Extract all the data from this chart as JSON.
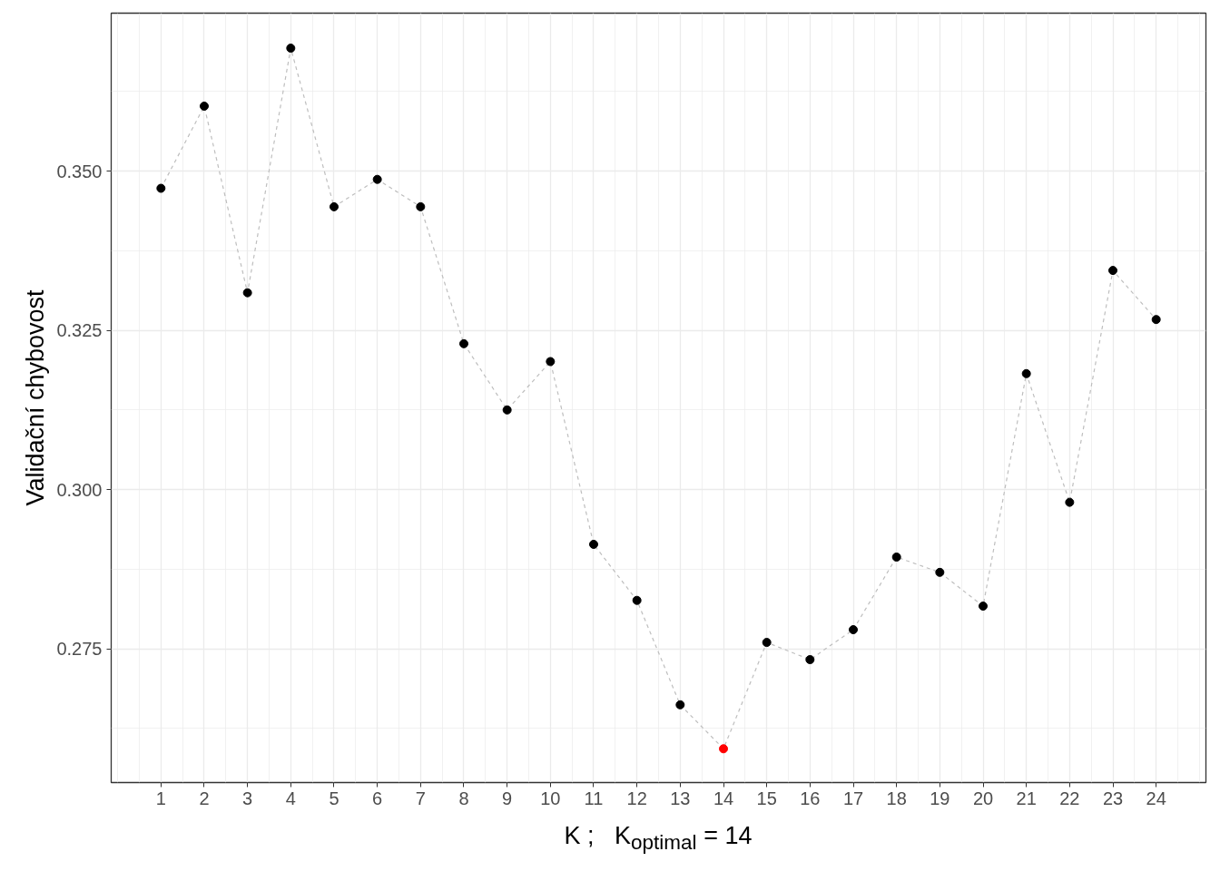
{
  "chart_data": {
    "type": "line",
    "xlabel": "K ;   K$_{optimal}$ = 14",
    "ylabel": "Validační chybovost",
    "x": [
      1,
      2,
      3,
      4,
      5,
      6,
      7,
      8,
      9,
      10,
      11,
      12,
      13,
      14,
      15,
      16,
      17,
      18,
      19,
      20,
      21,
      22,
      23,
      24
    ],
    "xlim": [
      -0.15,
      25.15
    ],
    "xticks": [
      1,
      2,
      3,
      4,
      5,
      6,
      7,
      8,
      9,
      10,
      11,
      12,
      13,
      14,
      15,
      16,
      17,
      18,
      19,
      20,
      21,
      22,
      23,
      24
    ],
    "ylim": [
      0.254,
      0.3748
    ],
    "yticks": [
      0.275,
      {
        "value": 0.3,
        "label": "0.300"
      },
      0.325,
      {
        "value": 0.35,
        "label": "0.350"
      }
    ],
    "grid": true,
    "series": [
      {
        "color": "#bebebe",
        "line_style": "dashed",
        "marker": "none",
        "values": [
          0.3473,
          0.3602,
          0.3309,
          0.3693,
          0.3444,
          0.3487,
          0.3444,
          0.3229,
          0.3125,
          0.3201,
          0.2914,
          0.2826,
          0.2662,
          0.2593,
          0.276,
          0.2733,
          0.278,
          0.2894,
          0.287,
          0.2817,
          0.3182,
          0.298,
          0.3344,
          0.3267
        ]
      },
      {
        "type": "scatter",
        "marker": "circle",
        "colors": [
          "#000000",
          "#000000",
          "#000000",
          "#000000",
          "#000000",
          "#000000",
          "#000000",
          "#000000",
          "#000000",
          "#000000",
          "#000000",
          "#000000",
          "#000000",
          "#ff0000",
          "#000000",
          "#000000",
          "#000000",
          "#000000",
          "#000000",
          "#000000",
          "#000000",
          "#000000",
          "#000000",
          "#000000"
        ],
        "values": [
          0.3473,
          0.3602,
          0.3309,
          0.3693,
          0.3444,
          0.3487,
          0.3444,
          0.3229,
          0.3125,
          0.3201,
          0.2914,
          0.2826,
          0.2662,
          0.2593,
          0.276,
          0.2733,
          0.278,
          0.2894,
          0.287,
          0.2817,
          0.3182,
          0.298,
          0.3344,
          0.3267
        ]
      }
    ]
  }
}
